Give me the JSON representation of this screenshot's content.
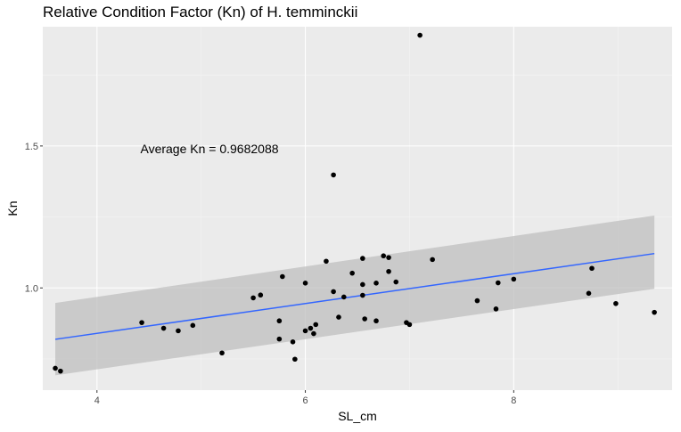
{
  "chart_data": {
    "type": "scatter",
    "title": "Relative Condition Factor (Kn) of H. temminckii",
    "xlabel": "SL_cm",
    "ylabel": "Kn",
    "xlim": [
      3.48,
      9.52
    ],
    "ylim": [
      0.64,
      1.92
    ],
    "x_ticks": [
      4,
      6,
      8
    ],
    "y_ticks": [
      1.0,
      1.5
    ],
    "x_tick_labels": [
      "4",
      "6",
      "8"
    ],
    "y_tick_labels": [
      "1.0",
      "1.5"
    ],
    "grid": true,
    "annotation": {
      "text": "Average Kn = 0.9682088",
      "x": 5.08,
      "y": 1.49
    },
    "trend": {
      "method": "linear",
      "x": [
        3.6,
        9.35
      ],
      "y": [
        0.819,
        1.121
      ],
      "ci_lower": [
        0.692,
        0.997
      ],
      "ci_upper": [
        0.947,
        1.255
      ]
    },
    "points": [
      {
        "x": 3.6,
        "y": 0.717
      },
      {
        "x": 3.65,
        "y": 0.707
      },
      {
        "x": 4.43,
        "y": 0.878
      },
      {
        "x": 4.64,
        "y": 0.858
      },
      {
        "x": 4.78,
        "y": 0.849
      },
      {
        "x": 4.92,
        "y": 0.868
      },
      {
        "x": 5.2,
        "y": 0.771
      },
      {
        "x": 5.5,
        "y": 0.965
      },
      {
        "x": 5.57,
        "y": 0.975
      },
      {
        "x": 5.75,
        "y": 0.884
      },
      {
        "x": 5.75,
        "y": 0.82
      },
      {
        "x": 5.78,
        "y": 1.04
      },
      {
        "x": 5.88,
        "y": 0.81
      },
      {
        "x": 5.9,
        "y": 0.749
      },
      {
        "x": 6.0,
        "y": 1.017
      },
      {
        "x": 6.0,
        "y": 0.849
      },
      {
        "x": 6.05,
        "y": 0.858
      },
      {
        "x": 6.08,
        "y": 0.839
      },
      {
        "x": 6.1,
        "y": 0.871
      },
      {
        "x": 6.2,
        "y": 1.094
      },
      {
        "x": 6.27,
        "y": 1.398
      },
      {
        "x": 6.27,
        "y": 0.987
      },
      {
        "x": 6.32,
        "y": 0.897
      },
      {
        "x": 6.37,
        "y": 0.968
      },
      {
        "x": 6.45,
        "y": 1.052
      },
      {
        "x": 6.55,
        "y": 1.104
      },
      {
        "x": 6.55,
        "y": 1.012
      },
      {
        "x": 6.55,
        "y": 0.974
      },
      {
        "x": 6.57,
        "y": 0.891
      },
      {
        "x": 6.68,
        "y": 1.017
      },
      {
        "x": 6.68,
        "y": 0.884
      },
      {
        "x": 6.75,
        "y": 1.113
      },
      {
        "x": 6.8,
        "y": 1.107
      },
      {
        "x": 6.8,
        "y": 1.058
      },
      {
        "x": 6.87,
        "y": 1.021
      },
      {
        "x": 6.97,
        "y": 0.878
      },
      {
        "x": 7.0,
        "y": 0.871
      },
      {
        "x": 7.1,
        "y": 1.89
      },
      {
        "x": 7.22,
        "y": 1.1
      },
      {
        "x": 7.65,
        "y": 0.955
      },
      {
        "x": 7.83,
        "y": 0.926
      },
      {
        "x": 7.85,
        "y": 1.018
      },
      {
        "x": 8.0,
        "y": 1.031
      },
      {
        "x": 8.72,
        "y": 0.981
      },
      {
        "x": 8.75,
        "y": 1.069
      },
      {
        "x": 8.98,
        "y": 0.945
      },
      {
        "x": 9.35,
        "y": 0.914
      }
    ]
  },
  "colors": {
    "panel": "#ebebeb",
    "grid_major": "#ffffff",
    "grid_minor": "#f4f4f4",
    "point": "#000000",
    "line": "#3366ff",
    "ribbon": "#bfbfbf"
  }
}
